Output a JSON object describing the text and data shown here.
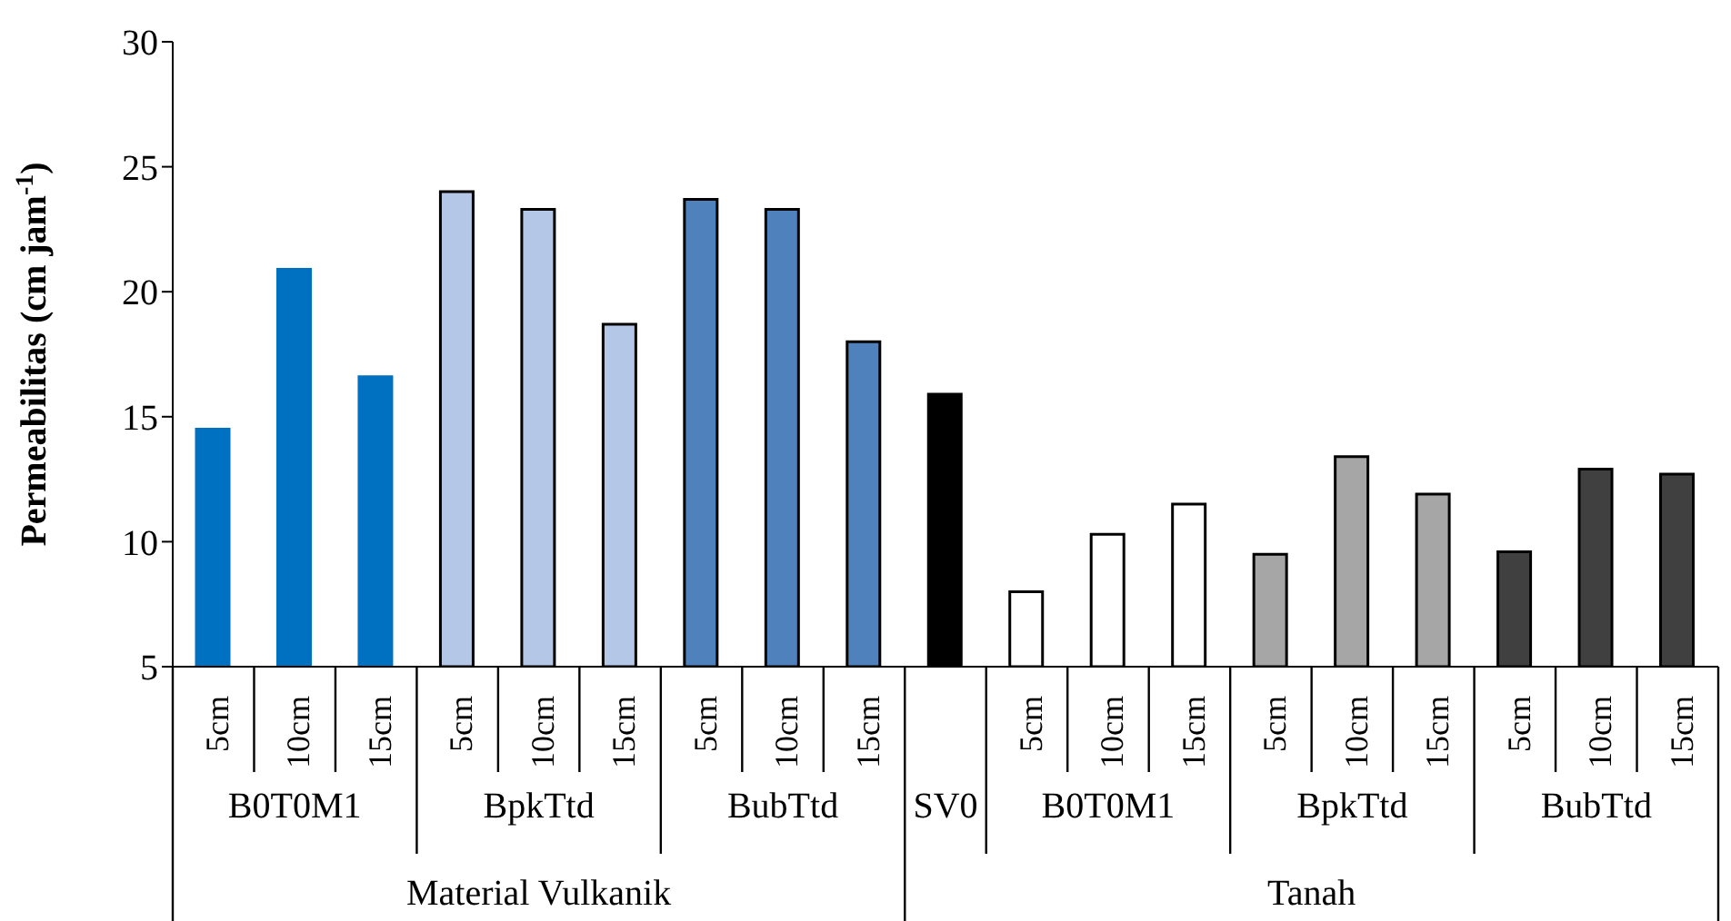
{
  "chart_data": {
    "type": "bar",
    "ylabel": "Permeabilitas (cm jam$^{-1}$)",
    "categories": [
      "5cm",
      "10cm",
      "15cm",
      "5cm",
      "10cm",
      "15cm",
      "5cm",
      "10cm",
      "15cm",
      null,
      "5cm",
      "10cm",
      "15cm",
      "5cm",
      "10cm",
      "15cm",
      "5cm",
      "10cm",
      "15cm"
    ],
    "values": [
      14.5,
      20.9,
      16.6,
      24.0,
      23.3,
      18.7,
      23.7,
      23.3,
      18.0,
      15.9,
      8.0,
      10.3,
      11.5,
      9.5,
      13.4,
      11.9,
      9.6,
      12.9,
      12.7
    ],
    "colors": [
      "#0070c0",
      "#0070c0",
      "#0070c0",
      "#b4c7e7",
      "#b4c7e7",
      "#b4c7e7",
      "#4f81bd",
      "#4f81bd",
      "#4f81bd",
      "#000000",
      "#ffffff",
      "#ffffff",
      "#ffffff",
      "#a6a6a6",
      "#a6a6a6",
      "#a6a6a6",
      "#404040",
      "#404040",
      "#404040"
    ],
    "ylim": [
      5,
      30
    ],
    "yticks": [
      5,
      10,
      15,
      20,
      25,
      30
    ],
    "grid": false,
    "annotations": [
      "B0T0M1",
      "BpkTtd",
      "BubTtd",
      "SV0",
      "B0T0M1",
      "BpkTtd",
      "BubTtd",
      "Material Vulkanik",
      "Tanah"
    ]
  }
}
